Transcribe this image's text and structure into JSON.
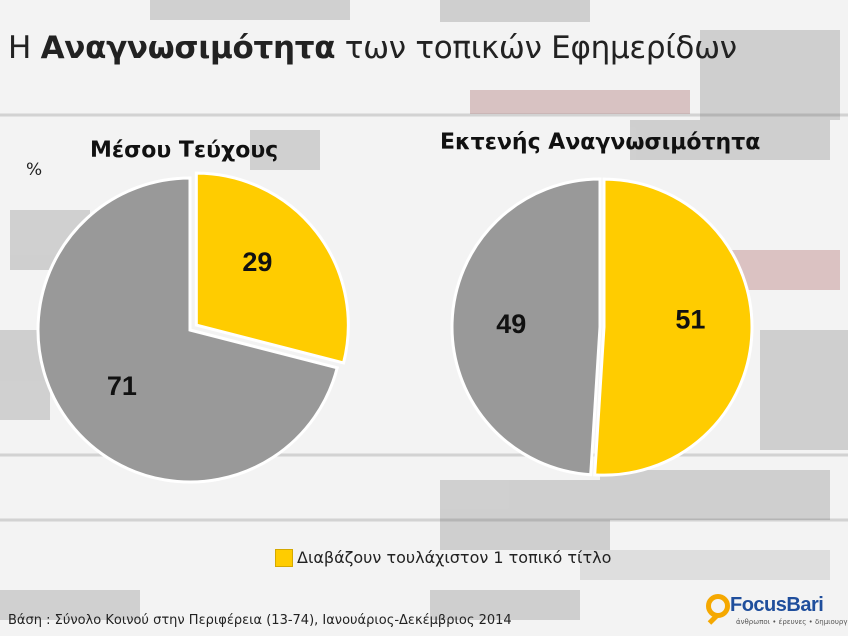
{
  "title": {
    "pre": "Η ",
    "bold": "Αναγνωσιμότητα",
    "post": " των τοπικών Εφημερίδων"
  },
  "unit": "%",
  "chart_data": [
    {
      "type": "pie",
      "title": "Μέσου Τεύχους",
      "slices": [
        {
          "label": "Διαβάζουν τουλάχιστον 1 τοπικό τίτλο",
          "value": 29,
          "color": "#ffcc00"
        },
        {
          "label": "",
          "value": 71,
          "color": "#999999"
        }
      ]
    },
    {
      "type": "pie",
      "title": "Εκτενής Αναγνωσιμότητα",
      "slices": [
        {
          "label": "Διαβάζουν τουλάχιστον 1 τοπικό τίτλο",
          "value": 51,
          "color": "#ffcc00"
        },
        {
          "label": "",
          "value": 49,
          "color": "#999999"
        }
      ]
    }
  ],
  "legend": {
    "label": "Διαβάζουν τουλάχιστον 1 τοπικό τίτλο",
    "color": "#ffcc00"
  },
  "base_note": "Βάση : Σύνολο Κοινού στην Περιφέρεια (13-74), Ιανουάριος-Δεκέμβριος 2014",
  "logo": {
    "name": "FocusBari",
    "tagline": "άνθρωποι • έρευνες • δημιουργία"
  }
}
